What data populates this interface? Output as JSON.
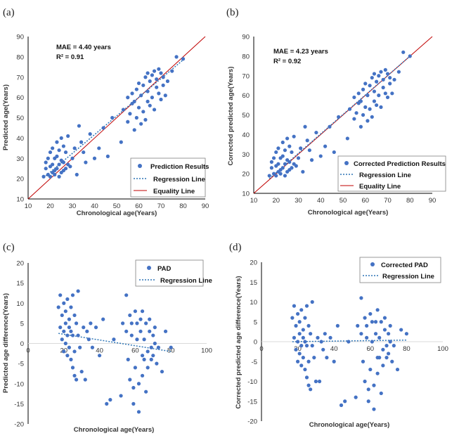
{
  "chart_data": [
    {
      "type": "scatter",
      "panel_label": "(a)",
      "xlabel": "Chronological age(Years)",
      "ylabel": "Predicted age(Years)",
      "xlim": [
        10,
        90
      ],
      "ylim": [
        10,
        90
      ],
      "xticks": [
        "10",
        "20",
        "30",
        "40",
        "50",
        "60",
        "70",
        "80",
        "90"
      ],
      "yticks": [
        "10",
        "20",
        "30",
        "40",
        "50",
        "60",
        "70",
        "80",
        "90"
      ],
      "annotations": [
        "MAE = 4.40 years",
        "R² = 0.91"
      ],
      "legend": [
        "Prediction Results",
        "Regression Line",
        "Equality Line"
      ],
      "legend_position": "bottom-right",
      "regression": {
        "x": [
          17,
          80
        ],
        "y": [
          20.5,
          78.5
        ]
      },
      "equality": {
        "x": [
          10,
          90
        ],
        "y": [
          10,
          90
        ]
      },
      "x": [
        17,
        18,
        18,
        19,
        19,
        20,
        20,
        20,
        21,
        21,
        21,
        22,
        22,
        22,
        23,
        23,
        23,
        24,
        24,
        24,
        25,
        25,
        25,
        26,
        26,
        26,
        27,
        27,
        28,
        28,
        29,
        30,
        31,
        32,
        33,
        34,
        35,
        36,
        38,
        40,
        42,
        44,
        46,
        48,
        52,
        53,
        55,
        55,
        56,
        57,
        57,
        58,
        58,
        59,
        59,
        60,
        60,
        61,
        61,
        62,
        62,
        63,
        63,
        64,
        64,
        64,
        65,
        65,
        66,
        66,
        67,
        67,
        68,
        68,
        69,
        69,
        70,
        70,
        71,
        71,
        72,
        73,
        75,
        77,
        80
      ],
      "y": [
        21,
        25,
        28,
        22,
        30,
        21,
        26,
        33,
        23,
        27,
        35,
        22,
        24,
        30,
        25,
        31,
        38,
        21,
        27,
        34,
        23,
        29,
        40,
        24,
        28,
        36,
        25,
        33,
        27,
        41,
        26,
        30,
        35,
        22,
        46,
        38,
        33,
        28,
        42,
        30,
        35,
        45,
        31,
        50,
        38,
        54,
        48,
        60,
        52,
        57,
        62,
        44,
        58,
        50,
        64,
        55,
        67,
        47,
        61,
        53,
        66,
        49,
        70,
        58,
        63,
        72,
        56,
        68,
        60,
        71,
        54,
        73,
        65,
        69,
        62,
        74,
        59,
        72,
        66,
        70,
        61,
        68,
        73,
        80,
        79
      ]
    },
    {
      "type": "scatter",
      "panel_label": "(b)",
      "xlabel": "Chronological age(Years)",
      "ylabel": "Corrected predicted age(Years)",
      "xlim": [
        10,
        90
      ],
      "ylim": [
        10,
        90
      ],
      "xticks": [
        "10",
        "20",
        "30",
        "40",
        "50",
        "60",
        "70",
        "80",
        "90"
      ],
      "yticks": [
        "10",
        "20",
        "30",
        "40",
        "50",
        "60",
        "70",
        "80",
        "90"
      ],
      "annotations": [
        "MAE = 4.23 years",
        "R² = 0.92"
      ],
      "legend": [
        "Corrected Prediction Results",
        "Regression Line",
        "Equality Line"
      ],
      "legend_position": "bottom-right",
      "regression": {
        "x": [
          17,
          80
        ],
        "y": [
          17.5,
          80
        ]
      },
      "equality": {
        "x": [
          10,
          90
        ],
        "y": [
          10,
          90
        ]
      },
      "x": [
        17,
        18,
        18,
        19,
        19,
        20,
        20,
        20,
        21,
        21,
        21,
        22,
        22,
        22,
        23,
        23,
        23,
        24,
        24,
        24,
        25,
        25,
        25,
        26,
        26,
        26,
        27,
        27,
        28,
        28,
        29,
        30,
        31,
        32,
        33,
        34,
        35,
        36,
        38,
        40,
        42,
        44,
        46,
        48,
        52,
        53,
        55,
        55,
        56,
        57,
        57,
        58,
        58,
        59,
        59,
        60,
        60,
        61,
        61,
        62,
        62,
        63,
        63,
        64,
        64,
        64,
        65,
        65,
        66,
        66,
        67,
        67,
        68,
        68,
        69,
        69,
        70,
        70,
        71,
        71,
        72,
        73,
        75,
        77,
        80
      ],
      "y": [
        19,
        23,
        26,
        20,
        28,
        19,
        24,
        31,
        21,
        25,
        33,
        20,
        22,
        28,
        23,
        29,
        36,
        19,
        25,
        32,
        21,
        27,
        38,
        22,
        26,
        34,
        23,
        31,
        25,
        39,
        24,
        28,
        33,
        21,
        44,
        37,
        32,
        27,
        41,
        29,
        34,
        44,
        31,
        49,
        38,
        53,
        48,
        59,
        51,
        56,
        61,
        44,
        57,
        50,
        63,
        54,
        66,
        47,
        60,
        53,
        65,
        49,
        69,
        57,
        62,
        71,
        55,
        67,
        60,
        70,
        54,
        72,
        64,
        68,
        61,
        73,
        59,
        71,
        66,
        69,
        61,
        68,
        72,
        82,
        80
      ]
    },
    {
      "type": "scatter",
      "panel_label": "(c)",
      "xlabel": "Chronological age(Years)",
      "ylabel": "Predicted age difference(Years)",
      "xlim": [
        0,
        100
      ],
      "ylim": [
        -20,
        20
      ],
      "xticks": [
        "0",
        "20",
        "40",
        "60",
        "80",
        "100"
      ],
      "yticks": [
        "-20",
        "-15",
        "-10",
        "-5",
        "0",
        "5",
        "10",
        "15",
        "20"
      ],
      "legend": [
        "PAD",
        "Regression Line"
      ],
      "legend_position": "top-right",
      "regression": {
        "x": [
          17,
          80
        ],
        "y": [
          2.5,
          -2
        ]
      },
      "x": [
        17,
        18,
        18,
        19,
        19,
        20,
        20,
        20,
        21,
        21,
        21,
        22,
        22,
        22,
        23,
        23,
        23,
        24,
        24,
        24,
        25,
        25,
        25,
        26,
        26,
        26,
        27,
        27,
        28,
        28,
        29,
        30,
        31,
        32,
        33,
        34,
        35,
        36,
        38,
        40,
        42,
        44,
        46,
        48,
        52,
        53,
        55,
        55,
        56,
        57,
        57,
        58,
        58,
        59,
        59,
        60,
        60,
        61,
        61,
        62,
        62,
        63,
        63,
        64,
        64,
        64,
        65,
        65,
        66,
        66,
        67,
        67,
        68,
        68,
        69,
        69,
        70,
        70,
        71,
        71,
        72,
        73,
        75,
        77,
        80
      ],
      "y": [
        9,
        4,
        12,
        1,
        7,
        3,
        -2,
        10,
        5,
        0,
        8,
        2,
        -3,
        11,
        4,
        -1,
        6,
        -4,
        9,
        3,
        12,
        -6,
        2,
        -2,
        7,
        -8,
        5,
        -9,
        2,
        13,
        -1,
        -7,
        4,
        -9,
        3,
        1,
        5,
        -1,
        4,
        -3,
        6,
        -15,
        -14,
        1,
        -13,
        5,
        3,
        12,
        -4,
        7,
        -9,
        2,
        5,
        -15,
        -11,
        8,
        -6,
        5,
        1,
        -17,
        -10,
        3,
        6,
        -3,
        -8,
        8,
        1,
        -4,
        -12,
        5,
        -6,
        -2,
        3,
        6,
        -1,
        -4,
        2,
        -3,
        0,
        4,
        -5,
        -1,
        -7,
        3,
        -1
      ]
    },
    {
      "type": "scatter",
      "panel_label": "(d)",
      "xlabel": "Chronological age(Years)",
      "ylabel": "Corrected predicted age difference(Years)",
      "xlim": [
        0,
        100
      ],
      "ylim": [
        -20,
        20
      ],
      "xticks": [
        "0",
        "20",
        "40",
        "60",
        "80",
        "100"
      ],
      "yticks": [
        "-20",
        "-15",
        "-10",
        "-5",
        "0",
        "5",
        "10",
        "15",
        "20"
      ],
      "legend": [
        "Corrected PAD",
        "Regression Line"
      ],
      "legend_position": "top-right",
      "regression": {
        "x": [
          17,
          80
        ],
        "y": [
          0,
          0.4
        ]
      },
      "x": [
        17,
        18,
        18,
        19,
        19,
        20,
        20,
        20,
        21,
        21,
        21,
        22,
        22,
        22,
        23,
        23,
        23,
        24,
        24,
        24,
        25,
        25,
        25,
        26,
        26,
        26,
        27,
        27,
        28,
        28,
        29,
        30,
        31,
        32,
        33,
        34,
        35,
        36,
        38,
        40,
        42,
        44,
        46,
        48,
        52,
        53,
        55,
        55,
        56,
        57,
        57,
        58,
        58,
        59,
        59,
        60,
        60,
        61,
        61,
        62,
        62,
        63,
        63,
        64,
        64,
        64,
        65,
        65,
        66,
        66,
        67,
        67,
        68,
        68,
        69,
        69,
        70,
        70,
        71,
        71,
        72,
        73,
        75,
        77,
        80
      ],
      "y": [
        6,
        1,
        9,
        -2,
        4,
        0,
        -5,
        7,
        2,
        -3,
        5,
        -1,
        -6,
        8,
        1,
        -4,
        3,
        -7,
        6,
        0,
        9,
        -9,
        -1,
        -5,
        4,
        -11,
        2,
        -12,
        -1,
        10,
        -4,
        -10,
        1,
        -10,
        0,
        -2,
        2,
        -4,
        1,
        -5,
        4,
        -16,
        -15,
        0,
        -14,
        4,
        2,
        11,
        -5,
        6,
        -10,
        1,
        4,
        -15,
        -12,
        7,
        -7,
        5,
        0,
        -17,
        -11,
        2,
        5,
        -4,
        -8,
        8,
        1,
        -4,
        -13,
        5,
        -6,
        -2,
        3,
        6,
        -1,
        -4,
        2,
        -3,
        0,
        4,
        -5,
        -1,
        -7,
        3,
        2
      ]
    }
  ],
  "colors": {
    "point": "#4472C4",
    "regression": "#2E75B6",
    "equality": "#C00000",
    "axis": "#000000",
    "zero_line": "#D9D9D9",
    "legend_border": "#808080"
  }
}
